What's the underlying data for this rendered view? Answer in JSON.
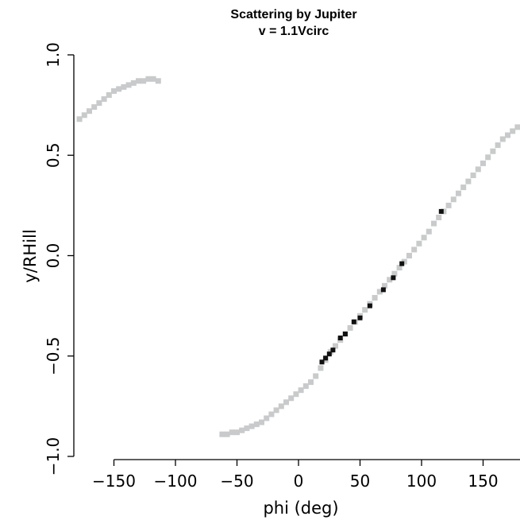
{
  "chart_data": {
    "type": "scatter",
    "title": "Scattering by Jupiter",
    "subtitle": "v = 1.1Vcirc",
    "xlabel": "phi (deg)",
    "ylabel": "y/RHill",
    "xlim": [
      -180,
      180
    ],
    "ylim": [
      -1.0,
      1.0
    ],
    "x_ticks": [
      -150,
      -100,
      -50,
      0,
      50,
      100,
      150
    ],
    "x_tick_labels": [
      "−150",
      "−100",
      "−50",
      "0",
      "50",
      "100",
      "150"
    ],
    "y_ticks": [
      -1.0,
      -0.5,
      0.0,
      0.5,
      1.0
    ],
    "y_tick_labels": [
      "−1.0",
      "−0.5",
      "0.0",
      "0.5",
      "1.0"
    ],
    "grid": false,
    "legend": "none",
    "colors": {
      "light_points": "#c8cacb",
      "dark_points": "#111111"
    },
    "series": [
      {
        "marker": "gray-square",
        "x": [
          -178,
          -174,
          -170,
          -166,
          -162,
          -158,
          -154,
          -150,
          -146,
          -142,
          -138,
          -134,
          -130,
          -126,
          -122,
          -118,
          -114,
          -62,
          -58,
          -54,
          -50,
          -46,
          -42,
          -38,
          -34,
          -30,
          -26,
          -22,
          -18,
          -14,
          -10,
          -6,
          -2,
          2,
          6,
          10,
          14,
          18,
          22,
          26,
          30,
          34,
          38,
          42,
          46,
          50,
          54,
          58,
          62,
          66,
          70,
          74,
          78,
          82,
          86,
          90,
          94,
          98,
          102,
          106,
          110,
          114,
          118,
          122,
          126,
          130,
          134,
          138,
          142,
          146,
          150,
          154,
          158,
          162,
          166,
          170,
          174,
          178
        ],
        "y": [
          0.68,
          0.7,
          0.72,
          0.74,
          0.76,
          0.78,
          0.8,
          0.82,
          0.83,
          0.84,
          0.85,
          0.86,
          0.87,
          0.87,
          0.88,
          0.88,
          0.87,
          -0.89,
          -0.89,
          -0.88,
          -0.88,
          -0.87,
          -0.86,
          -0.85,
          -0.84,
          -0.83,
          -0.81,
          -0.79,
          -0.77,
          -0.75,
          -0.73,
          -0.71,
          -0.69,
          -0.67,
          -0.65,
          -0.63,
          -0.6,
          -0.56,
          -0.52,
          -0.48,
          -0.45,
          -0.42,
          -0.39,
          -0.36,
          -0.33,
          -0.3,
          -0.27,
          -0.24,
          -0.21,
          -0.18,
          -0.15,
          -0.12,
          -0.09,
          -0.06,
          -0.03,
          0.0,
          0.03,
          0.06,
          0.09,
          0.12,
          0.16,
          0.19,
          0.22,
          0.25,
          0.28,
          0.31,
          0.34,
          0.37,
          0.4,
          0.43,
          0.46,
          0.49,
          0.52,
          0.55,
          0.58,
          0.6,
          0.62,
          0.64
        ]
      },
      {
        "marker": "black-square",
        "x": [
          19,
          22,
          25,
          28,
          34,
          38,
          45,
          50,
          58,
          69,
          77,
          84,
          116
        ],
        "y": [
          -0.53,
          -0.51,
          -0.49,
          -0.47,
          -0.41,
          -0.39,
          -0.33,
          -0.31,
          -0.25,
          -0.17,
          -0.11,
          -0.04,
          0.22
        ]
      }
    ]
  }
}
